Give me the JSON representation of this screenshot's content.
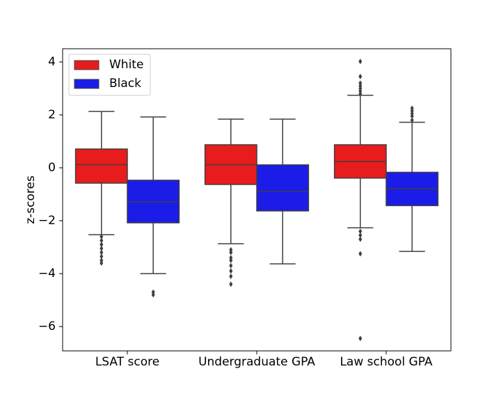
{
  "chart_data": {
    "type": "box",
    "y_label": "z-scores",
    "categories": [
      "LSAT score",
      "Undergraduate GPA",
      "Law school GPA"
    ],
    "ylim": [
      -6.92,
      4.5
    ],
    "yticks": [
      {
        "value": -6,
        "label": "−6"
      },
      {
        "value": -4,
        "label": "−4"
      },
      {
        "value": -2,
        "label": "−2"
      },
      0,
      2,
      4
    ],
    "legend": "upper left",
    "series": [
      {
        "name": "White",
        "color": "#e81c1c",
        "whislo": [
          -2.53,
          -2.87,
          -2.27
        ],
        "q1": [
          -0.58,
          -0.63,
          -0.39
        ],
        "med": [
          0.12,
          0.12,
          0.24
        ],
        "q3": [
          0.71,
          0.87,
          0.87
        ],
        "whishi": [
          2.13,
          1.84,
          2.74
        ],
        "fliers": [
          [
            -2.6,
            -2.75,
            -2.9,
            -3.05,
            -3.2,
            -3.35,
            -3.5,
            -3.6
          ],
          [
            -3.1,
            -3.2,
            -3.4,
            -3.5,
            -3.7,
            -3.9,
            -4.1,
            -4.4
          ],
          [
            2.8,
            2.9,
            3.0,
            3.1,
            3.2,
            3.45,
            4.02,
            -2.4,
            -2.55,
            -2.7,
            -3.25,
            -6.45
          ]
        ]
      },
      {
        "name": "Black",
        "color": "#1c1ce8",
        "whislo": [
          -4.0,
          -3.63,
          -3.16
        ],
        "q1": [
          -2.08,
          -1.63,
          -1.43
        ],
        "med": [
          -1.29,
          -0.89,
          -0.79
        ],
        "q3": [
          -0.47,
          0.11,
          -0.17
        ],
        "whishi": [
          1.92,
          1.84,
          1.72
        ],
        "fliers": [
          [
            -4.7,
            -4.8
          ],
          [],
          [
            1.8,
            1.95,
            2.05,
            2.15,
            2.25
          ]
        ]
      }
    ]
  }
}
